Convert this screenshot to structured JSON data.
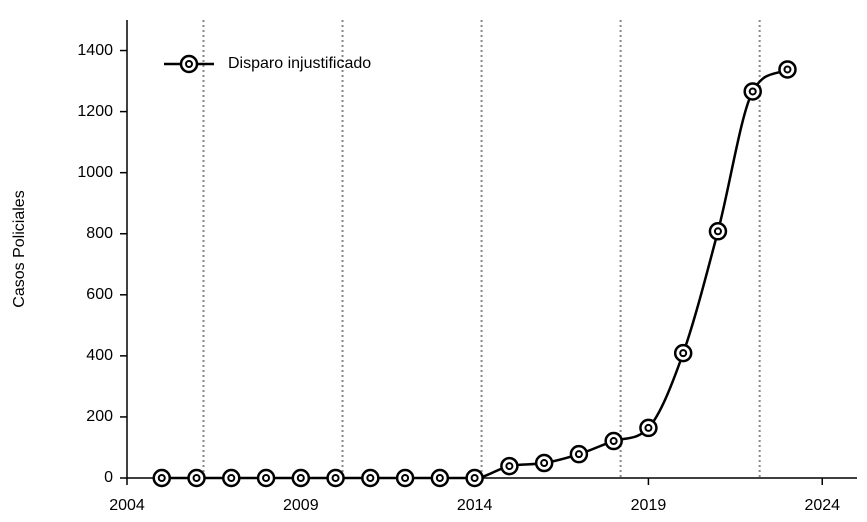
{
  "chart_data": {
    "type": "line",
    "y_label": "Casos Policiales",
    "x": [
      2005,
      2006,
      2007,
      2008,
      2009,
      2010,
      2011,
      2012,
      2013,
      2014,
      2015,
      2016,
      2017,
      2018,
      2019,
      2020,
      2021,
      2022,
      2023
    ],
    "series": [
      {
        "name": "Disparo injustificado",
        "color": "#000000",
        "values": [
          0,
          0,
          0,
          0,
          0,
          0,
          0,
          0,
          0,
          0,
          39,
          49,
          78,
          121,
          164,
          409,
          808,
          1266,
          1338
        ]
      }
    ],
    "xlim": [
      2004,
      2025
    ],
    "xticks": [
      2004,
      2009,
      2014,
      2019,
      2024
    ],
    "ylim": [
      0,
      1500
    ],
    "yticks": [
      0,
      200,
      400,
      600,
      800,
      1000,
      1200,
      1400
    ],
    "vlines": [
      2006.2,
      2010.2,
      2014.2,
      2018.2,
      2022.2
    ],
    "legend": "upper left"
  }
}
